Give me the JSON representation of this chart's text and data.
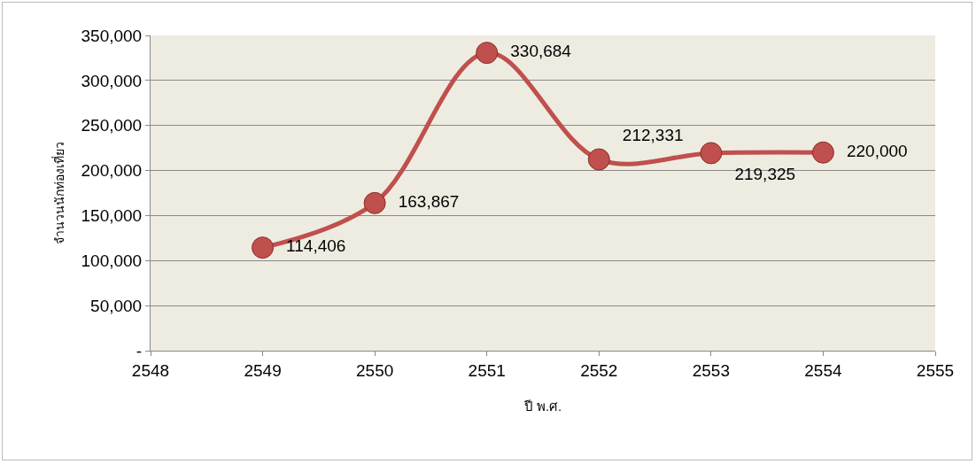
{
  "chart_data": {
    "type": "line",
    "xlabel": "ปี พ.ศ.",
    "ylabel": "จำนวนนักท่องเที่ยว",
    "x": [
      2549,
      2550,
      2551,
      2552,
      2553,
      2554
    ],
    "values": [
      114406,
      163867,
      330684,
      212331,
      219325,
      220000
    ],
    "value_labels": [
      "114,406",
      "163,867",
      "330,684",
      "212,331",
      "219,325",
      "220,000"
    ],
    "color": "#c0504d",
    "marker": "circle",
    "line_style": "solid",
    "grid": "y",
    "xlim": [
      2548,
      2555
    ],
    "xticks": [
      2548,
      2549,
      2550,
      2551,
      2552,
      2553,
      2554,
      2555
    ],
    "ylim": [
      0,
      350000
    ],
    "yticks": [
      {
        "value": 0,
        "label": "-"
      },
      {
        "value": 50000,
        "label": "50,000"
      },
      {
        "value": 100000,
        "label": "100,000"
      },
      {
        "value": 150000,
        "label": "150,000"
      },
      {
        "value": 200000,
        "label": "200,000"
      },
      {
        "value": 250000,
        "label": "250,000"
      },
      {
        "value": 300000,
        "label": "300,000"
      },
      {
        "value": 350000,
        "label": "350,000"
      }
    ]
  }
}
